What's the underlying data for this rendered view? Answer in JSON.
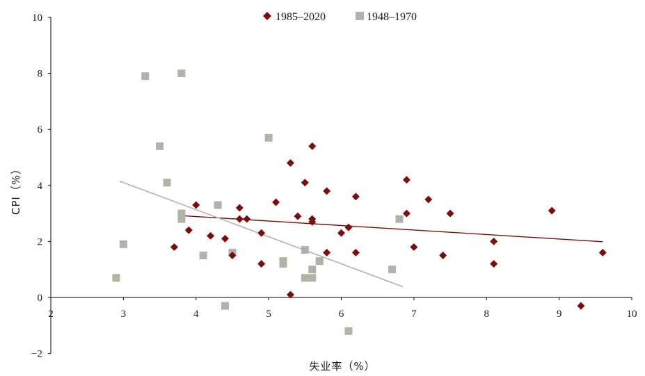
{
  "chart_data": {
    "type": "scatter",
    "title": "",
    "xlabel": "失业率（%）",
    "ylabel": "CPI（%）",
    "xlim": [
      2,
      10
    ],
    "ylim": [
      -2,
      10
    ],
    "x_ticks": [
      2,
      3,
      4,
      5,
      6,
      7,
      8,
      9,
      10
    ],
    "y_ticks": [
      -2,
      0,
      2,
      4,
      6,
      8,
      10
    ],
    "grid": false,
    "legend_position": "top-center",
    "series": [
      {
        "name": "1985–2020",
        "marker": "diamond",
        "color": "#7b0c0c",
        "points": [
          [
            3.7,
            1.8
          ],
          [
            3.9,
            2.4
          ],
          [
            4.0,
            3.3
          ],
          [
            4.2,
            2.2
          ],
          [
            4.4,
            2.1
          ],
          [
            4.5,
            1.5
          ],
          [
            4.6,
            3.2
          ],
          [
            4.6,
            2.8
          ],
          [
            4.7,
            2.8
          ],
          [
            4.9,
            1.2
          ],
          [
            4.9,
            2.3
          ],
          [
            5.1,
            3.4
          ],
          [
            5.3,
            4.8
          ],
          [
            5.3,
            0.1
          ],
          [
            5.4,
            2.9
          ],
          [
            5.5,
            4.1
          ],
          [
            5.6,
            2.7
          ],
          [
            5.6,
            2.8
          ],
          [
            5.6,
            5.4
          ],
          [
            5.8,
            3.8
          ],
          [
            5.8,
            1.6
          ],
          [
            6.0,
            2.3
          ],
          [
            6.1,
            2.5
          ],
          [
            6.2,
            3.6
          ],
          [
            6.2,
            1.6
          ],
          [
            6.9,
            4.2
          ],
          [
            6.9,
            3.0
          ],
          [
            7.0,
            1.8
          ],
          [
            7.2,
            3.5
          ],
          [
            7.4,
            1.5
          ],
          [
            7.5,
            3.0
          ],
          [
            8.1,
            2.0
          ],
          [
            8.1,
            1.2
          ],
          [
            8.9,
            3.1
          ],
          [
            9.3,
            -0.3
          ],
          [
            9.6,
            1.6
          ]
        ],
        "trendline": [
          [
            3.75,
            2.93
          ],
          [
            9.6,
            1.99
          ]
        ]
      },
      {
        "name": "1948–1970",
        "marker": "square",
        "color": "#b3b2a6",
        "points": [
          [
            2.9,
            0.7
          ],
          [
            3.0,
            1.9
          ],
          [
            3.3,
            7.9
          ],
          [
            3.5,
            5.4
          ],
          [
            3.6,
            4.1
          ],
          [
            3.8,
            8.0
          ],
          [
            3.8,
            2.8
          ],
          [
            3.8,
            3.0
          ],
          [
            4.1,
            1.5
          ],
          [
            4.3,
            3.3
          ],
          [
            4.4,
            -0.3
          ],
          [
            4.5,
            1.6
          ],
          [
            5.0,
            5.7
          ],
          [
            5.2,
            1.3
          ],
          [
            5.2,
            1.2
          ],
          [
            5.5,
            0.7
          ],
          [
            5.5,
            1.7
          ],
          [
            5.6,
            1.0
          ],
          [
            5.6,
            0.7
          ],
          [
            5.7,
            1.3
          ],
          [
            6.1,
            -1.2
          ],
          [
            6.7,
            1.0
          ],
          [
            6.8,
            2.8
          ]
        ],
        "trendline": [
          [
            2.95,
            4.15
          ],
          [
            6.85,
            0.38
          ]
        ]
      }
    ]
  }
}
